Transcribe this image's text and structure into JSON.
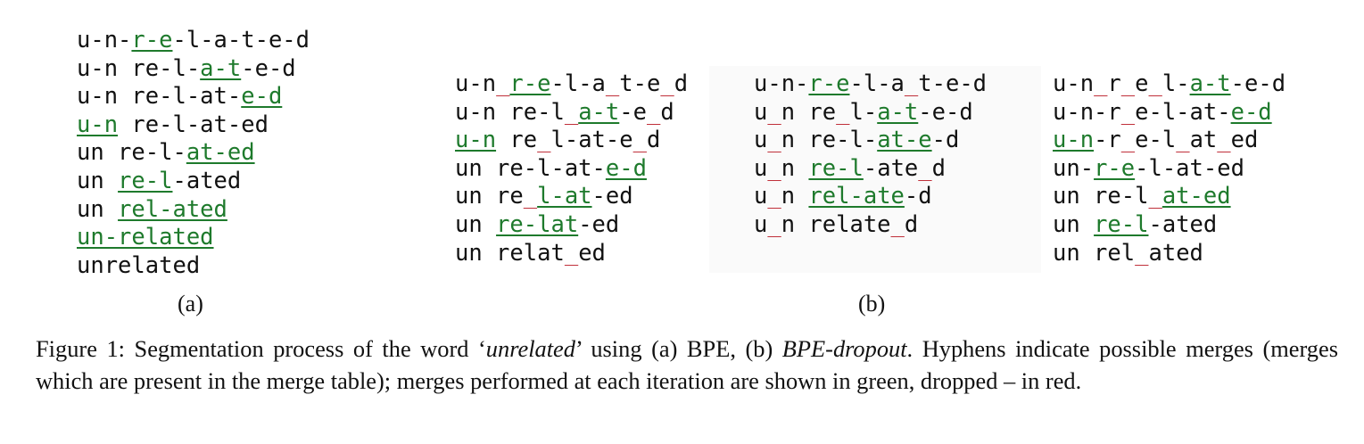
{
  "panel_a": {
    "rows": [
      [
        [
          "u-n-",
          ""
        ],
        [
          "r-e",
          "g"
        ],
        [
          "-l-a-t-e-d",
          ""
        ]
      ],
      [
        [
          "u-n re-l-",
          ""
        ],
        [
          "a-t",
          "g"
        ],
        [
          "-e-d",
          ""
        ]
      ],
      [
        [
          "u-n re-l-at-",
          ""
        ],
        [
          "e-d",
          "g"
        ]
      ],
      [
        [
          "u-n",
          "g"
        ],
        [
          " re-l-at-ed",
          ""
        ]
      ],
      [
        [
          "un re-l-",
          ""
        ],
        [
          "at-ed",
          "g"
        ]
      ],
      [
        [
          "un ",
          ""
        ],
        [
          "re-l",
          "g"
        ],
        [
          "-ated",
          ""
        ]
      ],
      [
        [
          "un ",
          ""
        ],
        [
          "rel-ated",
          "g"
        ]
      ],
      [
        [
          "un-related",
          "g"
        ]
      ],
      [
        [
          "unrelated",
          ""
        ]
      ]
    ]
  },
  "panel_b1": {
    "rows": [
      [
        [
          "u-n",
          ""
        ],
        [
          "_",
          "r"
        ],
        [
          "r-e",
          "g"
        ],
        [
          "-l-a",
          ""
        ],
        [
          "_",
          "r"
        ],
        [
          "t-e",
          ""
        ],
        [
          "_",
          "r"
        ],
        [
          "d",
          ""
        ]
      ],
      [
        [
          "u-n re-l",
          ""
        ],
        [
          "_",
          "r"
        ],
        [
          "a-t",
          "g"
        ],
        [
          "-e",
          ""
        ],
        [
          "_",
          "r"
        ],
        [
          "d",
          ""
        ]
      ],
      [
        [
          "u-n",
          "g"
        ],
        [
          " re",
          ""
        ],
        [
          "_",
          "r"
        ],
        [
          "l-at-e",
          ""
        ],
        [
          "_",
          "r"
        ],
        [
          "d",
          ""
        ]
      ],
      [
        [
          "un re-l-at-",
          ""
        ],
        [
          "e-d",
          "g"
        ]
      ],
      [
        [
          "un re",
          ""
        ],
        [
          "_",
          "r"
        ],
        [
          "l-at",
          "g"
        ],
        [
          "-ed",
          ""
        ]
      ],
      [
        [
          "un ",
          ""
        ],
        [
          "re-lat",
          "g"
        ],
        [
          "-ed",
          ""
        ]
      ],
      [
        [
          "un relat",
          ""
        ],
        [
          "_",
          "r"
        ],
        [
          "ed",
          ""
        ]
      ]
    ]
  },
  "panel_b2": {
    "rows": [
      [
        [
          "u-n-",
          ""
        ],
        [
          "r-e",
          "g"
        ],
        [
          "-l-a",
          ""
        ],
        [
          "_",
          "r"
        ],
        [
          "t-e-d",
          ""
        ]
      ],
      [
        [
          "u",
          ""
        ],
        [
          "_",
          "r"
        ],
        [
          "n re",
          ""
        ],
        [
          "_",
          "r"
        ],
        [
          "l-",
          ""
        ],
        [
          "a-t",
          "g"
        ],
        [
          "-e-d",
          ""
        ]
      ],
      [
        [
          "u",
          ""
        ],
        [
          "_",
          "r"
        ],
        [
          "n re-l-",
          ""
        ],
        [
          "at-e",
          "g"
        ],
        [
          "-d",
          ""
        ]
      ],
      [
        [
          "u",
          ""
        ],
        [
          "_",
          "r"
        ],
        [
          "n ",
          ""
        ],
        [
          "re-l",
          "g"
        ],
        [
          "-ate",
          ""
        ],
        [
          "_",
          "r"
        ],
        [
          "d",
          ""
        ]
      ],
      [
        [
          "u",
          ""
        ],
        [
          "_",
          "r"
        ],
        [
          "n ",
          ""
        ],
        [
          "rel-ate",
          "g"
        ],
        [
          "-d",
          ""
        ]
      ],
      [
        [
          "u",
          ""
        ],
        [
          "_",
          "r"
        ],
        [
          "n relate",
          ""
        ],
        [
          "_",
          "r"
        ],
        [
          "d",
          ""
        ]
      ]
    ]
  },
  "panel_b3": {
    "rows": [
      [
        [
          "u-n",
          ""
        ],
        [
          "_",
          "r"
        ],
        [
          "r",
          ""
        ],
        [
          "_",
          "r"
        ],
        [
          "e",
          ""
        ],
        [
          "_",
          "r"
        ],
        [
          "l-",
          ""
        ],
        [
          "a-t",
          "g"
        ],
        [
          "-e-d",
          ""
        ]
      ],
      [
        [
          "u-n-r",
          ""
        ],
        [
          "_",
          "r"
        ],
        [
          "e-l-at-",
          ""
        ],
        [
          "e-d",
          "g"
        ]
      ],
      [
        [
          "u-n",
          "g"
        ],
        [
          "-r",
          ""
        ],
        [
          "_",
          "r"
        ],
        [
          "e-l",
          ""
        ],
        [
          "_",
          "r"
        ],
        [
          "at",
          ""
        ],
        [
          "_",
          "r"
        ],
        [
          "ed",
          ""
        ]
      ],
      [
        [
          "un-",
          ""
        ],
        [
          "r-e",
          "g"
        ],
        [
          "-l-at-ed",
          ""
        ]
      ],
      [
        [
          "un re-l",
          ""
        ],
        [
          "_",
          "r"
        ],
        [
          "at-ed",
          "g"
        ]
      ],
      [
        [
          "un ",
          ""
        ],
        [
          "re-l",
          "g"
        ],
        [
          "-ated",
          ""
        ]
      ],
      [
        [
          "un rel",
          ""
        ],
        [
          "_",
          "r"
        ],
        [
          "ated",
          ""
        ]
      ]
    ]
  },
  "labels": {
    "a": "(a)",
    "b": "(b)"
  },
  "caption": {
    "p1": "Figure 1: Segmentation process of the word ‘",
    "word": "unrelated",
    "p2": "’ using (a) BPE, (b) ",
    "method": "BPE-dropout",
    "p3": ". Hyphens indicate possible merges (merges which are present in the merge table); merges performed at each iteration are shown in green, dropped – in red."
  }
}
